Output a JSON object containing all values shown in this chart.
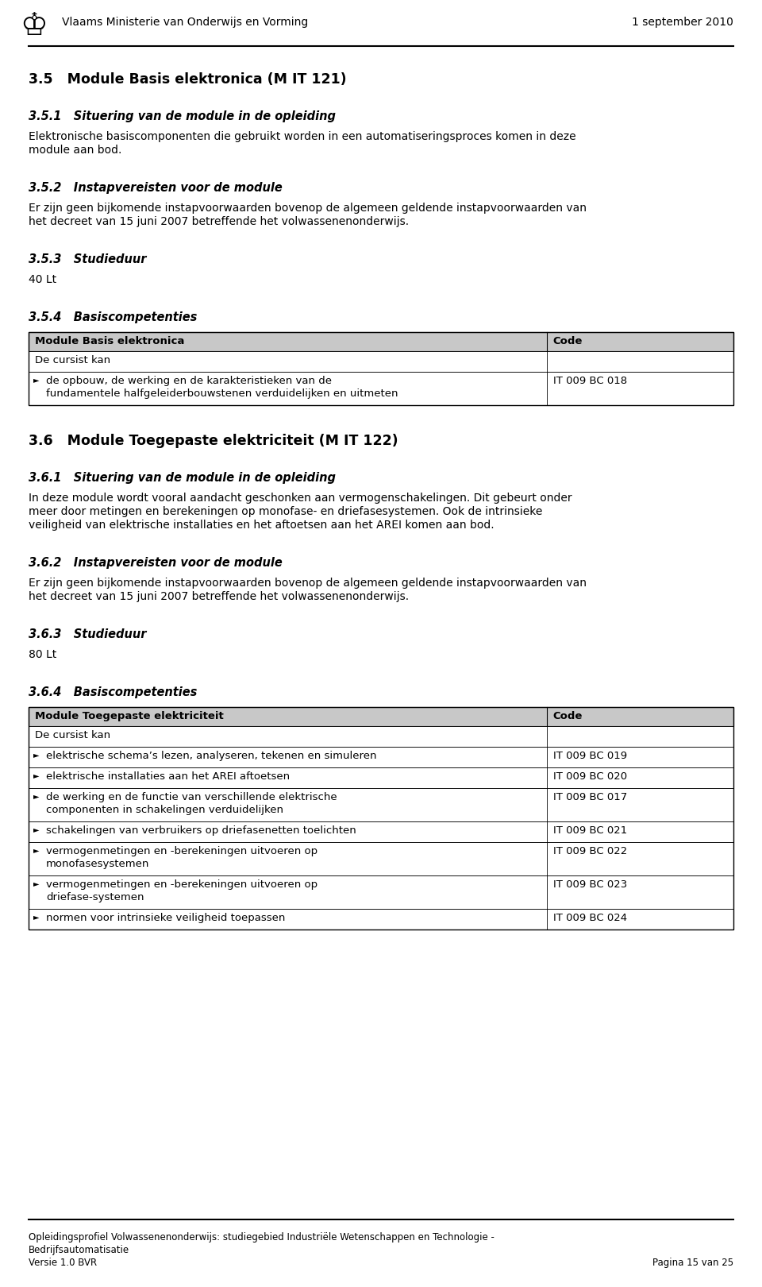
{
  "header_text": "Vlaams Ministerie van Onderwijs en Vorming",
  "header_date": "1 september 2010",
  "footer_line1": "Opleidingsprofiel Volwassenenonderwijs: studiegebied Industriële Wetenschappen en Technologie -",
  "footer_line2": "Bedrijfsautomatisatie",
  "footer_left": "Versie 1.0 BVR",
  "footer_right": "Pagina 15 van 25",
  "sections": [
    {
      "type": "heading1",
      "text": "3.5   Module Basis elektronica (M IT 121)"
    },
    {
      "type": "heading2",
      "text": "3.5.1   Situering van de module in de opleiding"
    },
    {
      "type": "body",
      "text": "Elektronische basiscomponenten die gebruikt worden in een automatiseringsproces komen in deze module aan bod."
    },
    {
      "type": "heading2",
      "text": "3.5.2   Instapvereisten voor de module"
    },
    {
      "type": "body",
      "text": "Er zijn geen bijkomende instapvoorwaarden bovenop de algemeen geldende instapvoorwaarden van het decreet van 15 juni 2007 betreffende het volwassenenonderwijs."
    },
    {
      "type": "heading2",
      "text": "3.5.3   Studieduur"
    },
    {
      "type": "body",
      "text": "40 Lt"
    },
    {
      "type": "heading2",
      "text": "3.5.4   Basiscompetenties"
    },
    {
      "type": "table",
      "header_col1": "Module Basis elektronica",
      "header_col2": "Code",
      "col_split": 0.735,
      "rows": [
        {
          "col1": "De cursist kan",
          "col2": "",
          "bullet": false
        },
        {
          "col1": "de opbouw, de werking en de karakteristieken van de fundamentele halfgeleiderbouwstenen verduidelijken en uitmeten",
          "col2": "IT 009 BC 018",
          "bullet": true
        }
      ]
    },
    {
      "type": "heading1",
      "text": "3.6   Module Toegepaste elektriciteit (M IT 122)"
    },
    {
      "type": "heading2",
      "text": "3.6.1   Situering van de module in de opleiding"
    },
    {
      "type": "body",
      "text": "In deze module wordt vooral aandacht geschonken aan vermogenschakelingen. Dit gebeurt onder meer door metingen en berekeningen op monofase- en driefasesystemen. Ook de intrinsieke veiligheid van elektrische installaties en het aftoetsen aan het AREI komen aan bod."
    },
    {
      "type": "heading2",
      "text": "3.6.2   Instapvereisten voor de module"
    },
    {
      "type": "body",
      "text": "Er zijn geen bijkomende instapvoorwaarden bovenop de algemeen geldende instapvoorwaarden van het decreet van 15 juni 2007 betreffende het volwassenenonderwijs."
    },
    {
      "type": "heading2",
      "text": "3.6.3   Studieduur"
    },
    {
      "type": "body",
      "text": "80 Lt"
    },
    {
      "type": "heading2",
      "text": "3.6.4   Basiscompetenties"
    },
    {
      "type": "table",
      "header_col1": "Module Toegepaste elektriciteit",
      "header_col2": "Code",
      "col_split": 0.735,
      "rows": [
        {
          "col1": "De cursist kan",
          "col2": "",
          "bullet": false
        },
        {
          "col1": "elektrische schema’s lezen, analyseren, tekenen en simuleren",
          "col2": "IT 009 BC 019",
          "bullet": true
        },
        {
          "col1": "elektrische installaties aan het AREI aftoetsen",
          "col2": "IT 009 BC 020",
          "bullet": true
        },
        {
          "col1": "de werking en de functie van verschillende elektrische componenten in schakelingen verduidelijken",
          "col2": "IT 009 BC 017",
          "bullet": true
        },
        {
          "col1": "schakelingen van verbruikers op driefasenetten toelichten",
          "col2": "IT 009 BC 021",
          "bullet": true
        },
        {
          "col1": "vermogenmetingen en -berekeningen uitvoeren op monofasesystemen",
          "col2": "IT 009 BC 022",
          "bullet": true
        },
        {
          "col1": "vermogenmetingen en -berekeningen uitvoeren op driefase-systemen",
          "col2": "IT 009 BC 023",
          "bullet": true
        },
        {
          "col1": "normen voor intrinsieke veiligheid toepassen",
          "col2": "IT 009 BC 024",
          "bullet": true
        }
      ]
    }
  ]
}
